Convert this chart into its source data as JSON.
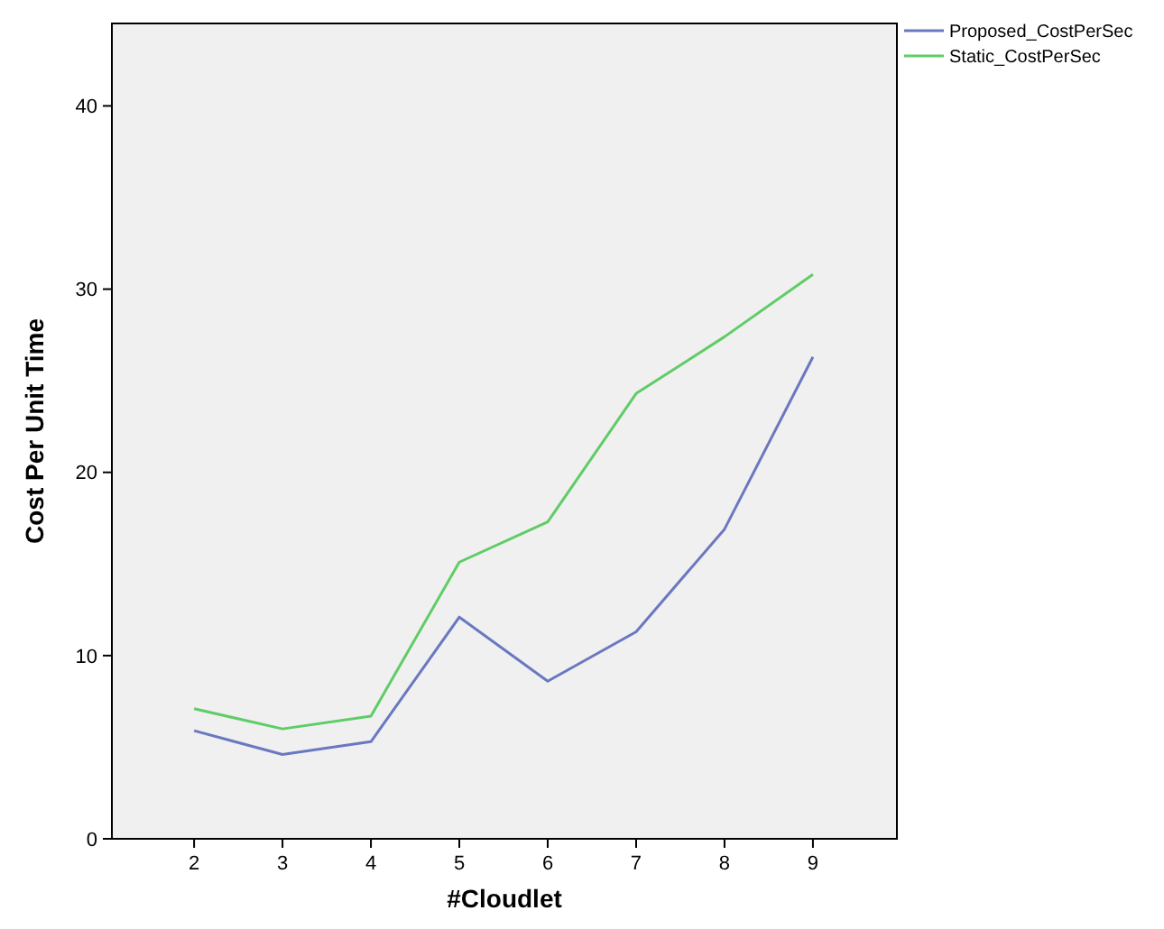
{
  "chart_data": {
    "type": "line",
    "xlabel": "#Cloudlet",
    "ylabel": "Cost Per Unit Time",
    "x": [
      2,
      3,
      4,
      5,
      6,
      7,
      8,
      9
    ],
    "series": [
      {
        "name": "Proposed_CostPerSec",
        "color": "#6a78c0",
        "values": [
          5.9,
          4.6,
          5.3,
          12.1,
          8.6,
          11.3,
          16.9,
          26.3
        ]
      },
      {
        "name": "Static_CostPerSec",
        "color": "#5fcc66",
        "values": [
          7.1,
          6.0,
          6.7,
          15.1,
          17.3,
          24.3,
          27.4,
          30.8
        ]
      }
    ],
    "xlim": [
      1.07,
      9.95
    ],
    "xticks": [
      2,
      3,
      4,
      5,
      6,
      7,
      8,
      9
    ],
    "ylim": [
      0,
      44.5
    ],
    "yticks": [
      0,
      10,
      20,
      30,
      40
    ],
    "grid": false,
    "legend": "top right",
    "marker": "none",
    "line_style": "solid"
  }
}
